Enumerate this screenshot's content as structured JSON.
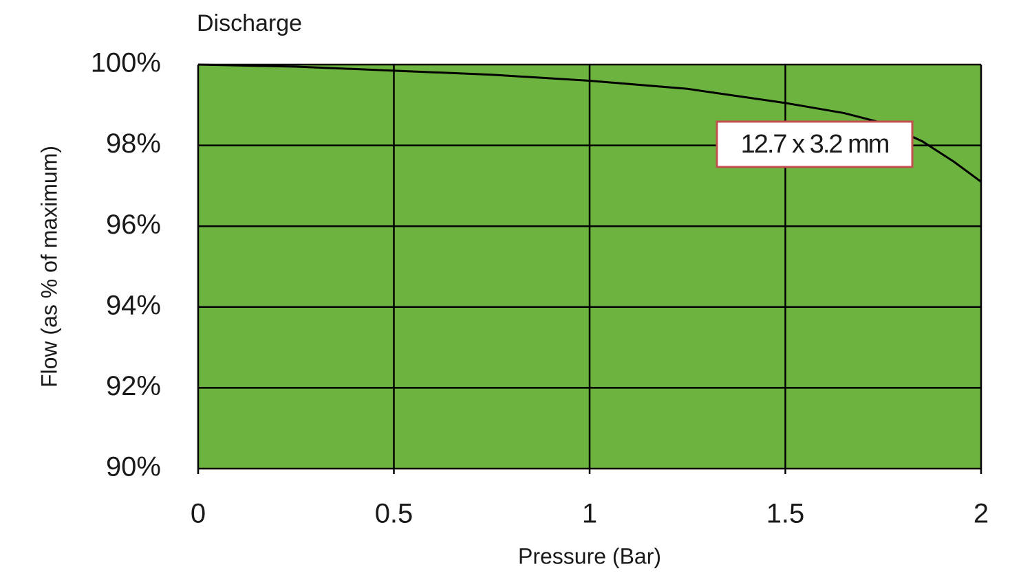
{
  "chart_data": {
    "type": "line",
    "title": "Discharge",
    "x_label": "Pressure (Bar)",
    "y_label": "Flow (as % of maximum)",
    "x": [
      0,
      0.25,
      0.5,
      0.75,
      1,
      1.25,
      1.5,
      1.65,
      1.75,
      1.85,
      1.93,
      2
    ],
    "series": [
      {
        "name": "12.7 x 3.2 mm",
        "color": "#000000",
        "values": [
          100,
          99.95,
          99.85,
          99.75,
          99.6,
          99.4,
          99.05,
          98.8,
          98.55,
          98.1,
          97.6,
          97.1
        ]
      }
    ],
    "xlim": [
      0,
      2
    ],
    "xticks": [
      0,
      0.5,
      1,
      1.5,
      2
    ],
    "ylim": [
      90,
      100
    ],
    "yticks": [
      {
        "value": 90,
        "label": "90%"
      },
      {
        "value": 92,
        "label": "92%"
      },
      {
        "value": 94,
        "label": "94%"
      },
      {
        "value": 96,
        "label": "96%"
      },
      {
        "value": 98,
        "label": "98%"
      },
      {
        "value": 100,
        "label": "100%"
      }
    ],
    "grid": true,
    "plot_background": "#6db33f",
    "annotation_border": "#c0504d"
  }
}
